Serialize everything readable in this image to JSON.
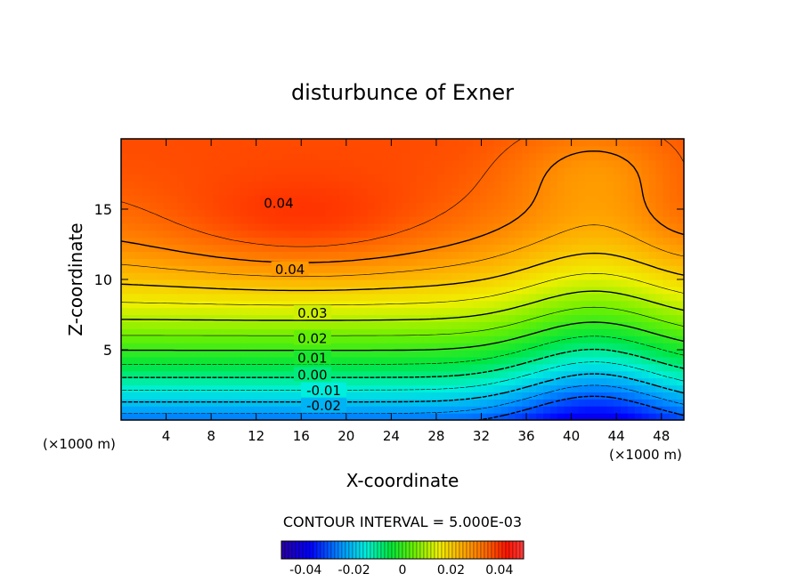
{
  "chart_data": {
    "type": "heatmap",
    "title": "disturbunce of Exner",
    "xlabel": "X-coordinate",
    "ylabel": "Z-coordinate",
    "x_unit_left": "(×1000 m)",
    "x_unit_right": "(×1000 m)",
    "xlim": [
      0,
      50
    ],
    "ylim": [
      0,
      20
    ],
    "xticks": [
      4,
      8,
      12,
      16,
      20,
      24,
      28,
      32,
      36,
      40,
      44,
      48
    ],
    "yticks": [
      5,
      10,
      15
    ],
    "contour_interval_text": "CONTOUR INTERVAL = 5.000E-03",
    "contour_interval": 0.005,
    "contour_labels": [
      {
        "text": "0.04",
        "x": 14,
        "z": 15.4
      },
      {
        "text": "0.04",
        "x": 15,
        "z": 10.7
      },
      {
        "text": "0.03",
        "x": 17,
        "z": 7.6
      },
      {
        "text": "0.02",
        "x": 17,
        "z": 5.8
      },
      {
        "text": "0.01",
        "x": 17,
        "z": 4.4
      },
      {
        "text": "0.00",
        "x": 17,
        "z": 3.2
      },
      {
        "text": "-0.01",
        "x": 18,
        "z": 2.1
      },
      {
        "text": "-0.02",
        "x": 18,
        "z": 1.0
      }
    ],
    "colorbar": {
      "min": -0.05,
      "max": 0.05,
      "ticks": [
        -0.04,
        -0.02,
        0,
        0.02,
        0.04
      ],
      "tick_labels": [
        "-0.04",
        "-0.02",
        "0",
        "0.02",
        "0.04"
      ]
    },
    "field_description_values": {
      "max_value": 0.045,
      "min_value": -0.028,
      "high_center_x": 16,
      "high_center_z": 13.5,
      "trough_x": 42
    }
  }
}
